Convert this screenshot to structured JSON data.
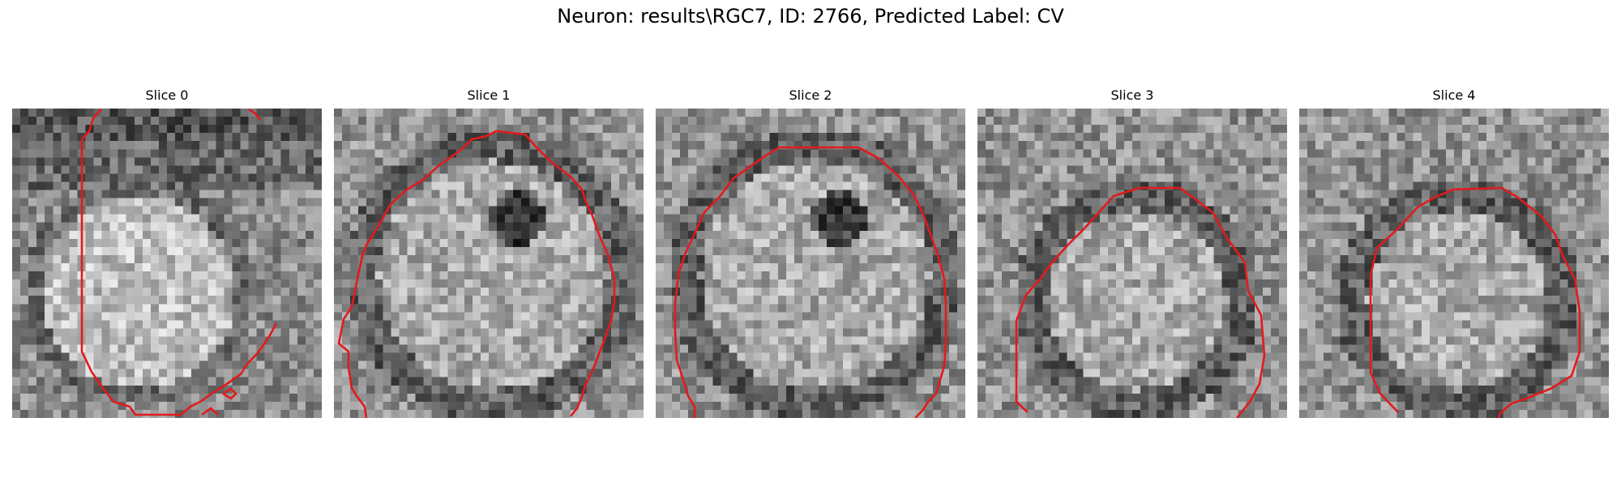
{
  "figure": {
    "title": "Neuron: results\\RGC7, ID: 2766, Predicted Label: CV",
    "contour_color": "#e31a1c",
    "colormap": "gray"
  },
  "panels": [
    {
      "title": "Slice 0",
      "style": "slice0"
    },
    {
      "title": "Slice 1",
      "style": "ring-dark-center"
    },
    {
      "title": "Slice 2",
      "style": "ring-dark-center"
    },
    {
      "title": "Slice 3",
      "style": "ring-bottom"
    },
    {
      "title": "Slice 4",
      "style": "ring-bottom"
    }
  ]
}
